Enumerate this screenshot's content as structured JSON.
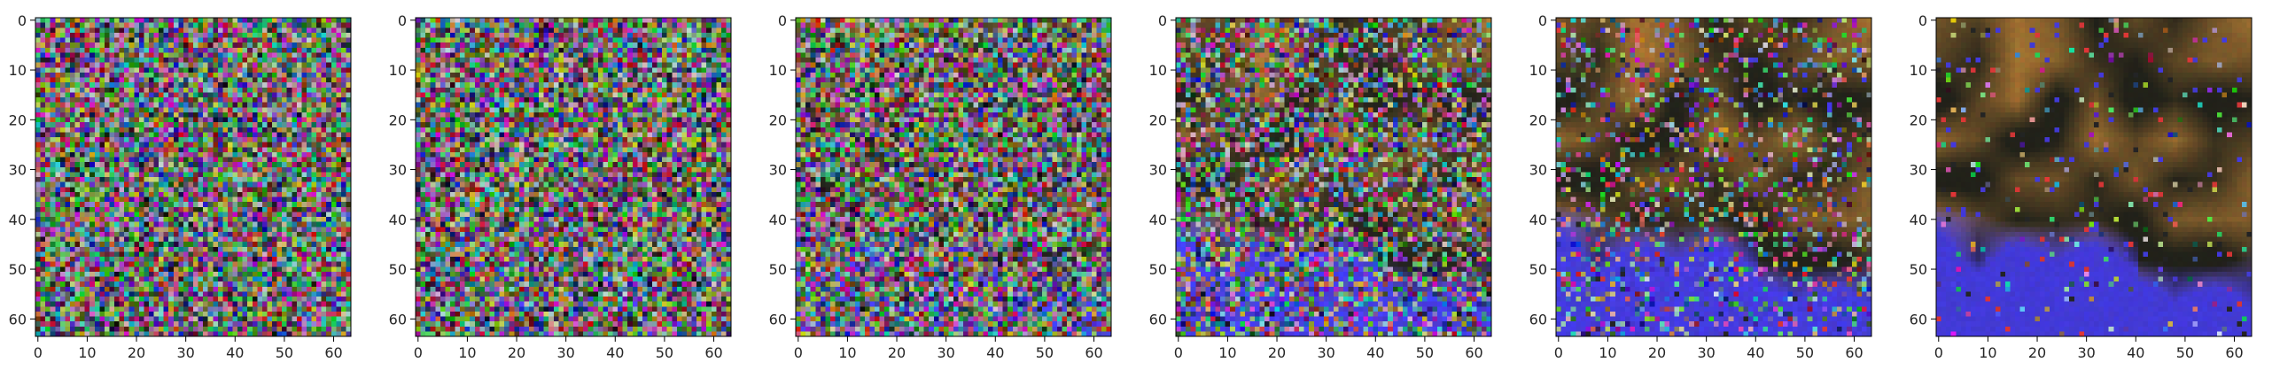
{
  "figure": {
    "panel_count": 6
  },
  "chart_data": [
    {
      "type": "heatmap",
      "title": "",
      "xlabel": "",
      "ylabel": "",
      "image_size": [
        64,
        64
      ],
      "xlim": [
        0,
        63
      ],
      "ylim": [
        63,
        0
      ],
      "xticks": [
        0,
        10,
        20,
        30,
        40,
        50,
        60
      ],
      "yticks": [
        0,
        10,
        20,
        30,
        40,
        50,
        60
      ],
      "content": "uniform random RGB noise",
      "noise_level": 1.0,
      "structure_level": 0.0,
      "colors": {
        "orange": "#c88a3a",
        "blue": "#4a40f0",
        "dark": "#25251c"
      },
      "grid": false
    },
    {
      "type": "heatmap",
      "title": "",
      "xlabel": "",
      "ylabel": "",
      "image_size": [
        64,
        64
      ],
      "xlim": [
        0,
        63
      ],
      "ylim": [
        63,
        0
      ],
      "xticks": [
        0,
        10,
        20,
        30,
        40,
        50,
        60
      ],
      "yticks": [
        0,
        10,
        20,
        30,
        40,
        50,
        60
      ],
      "content": "random RGB noise",
      "noise_level": 0.97,
      "structure_level": 0.03,
      "colors": {
        "orange": "#c88a3a",
        "blue": "#4a40f0",
        "dark": "#25251c"
      },
      "grid": false
    },
    {
      "type": "heatmap",
      "title": "",
      "xlabel": "",
      "ylabel": "",
      "image_size": [
        64,
        64
      ],
      "xlim": [
        0,
        63
      ],
      "ylim": [
        63,
        0
      ],
      "xticks": [
        0,
        10,
        20,
        30,
        40,
        50,
        60
      ],
      "yticks": [
        0,
        10,
        20,
        30,
        40,
        50,
        60
      ],
      "content": "random RGB noise, slightly darker",
      "noise_level": 0.9,
      "structure_level": 0.12,
      "colors": {
        "orange": "#c88a3a",
        "blue": "#4a40f0",
        "dark": "#25251c"
      },
      "grid": false
    },
    {
      "type": "heatmap",
      "title": "",
      "xlabel": "",
      "ylabel": "",
      "image_size": [
        64,
        64
      ],
      "xlim": [
        0,
        63
      ],
      "ylim": [
        63,
        0
      ],
      "xticks": [
        0,
        10,
        20,
        30,
        40,
        50,
        60
      ],
      "yticks": [
        0,
        10,
        20,
        30,
        40,
        50,
        60
      ],
      "content": "noise with faint orange and blue structure",
      "noise_level": 0.65,
      "structure_level": 0.35,
      "colors": {
        "orange": "#c88a3a",
        "blue": "#4a40f0",
        "dark": "#25251c"
      },
      "grid": false
    },
    {
      "type": "heatmap",
      "title": "",
      "xlabel": "",
      "ylabel": "",
      "image_size": [
        64,
        64
      ],
      "xlim": [
        0,
        63
      ],
      "ylim": [
        63,
        0
      ],
      "xticks": [
        0,
        10,
        20,
        30,
        40,
        50,
        60
      ],
      "yticks": [
        0,
        10,
        20,
        30,
        40,
        50,
        60
      ],
      "content": "dark orange/blue scene with sparse noise",
      "noise_level": 0.28,
      "structure_level": 0.72,
      "colors": {
        "orange": "#c88a3a",
        "blue": "#4a40f0",
        "dark": "#25251c"
      },
      "grid": false
    },
    {
      "type": "heatmap",
      "title": "",
      "xlabel": "",
      "ylabel": "",
      "image_size": [
        64,
        64
      ],
      "xlim": [
        0,
        63
      ],
      "ylim": [
        63,
        0
      ],
      "xticks": [
        0,
        10,
        20,
        30,
        40,
        50,
        60
      ],
      "yticks": [
        0,
        10,
        20,
        30,
        40,
        50,
        60
      ],
      "content": "mostly denoised: orange upper region, blue lower region",
      "noise_level": 0.04,
      "structure_level": 1.0,
      "colors": {
        "orange": "#c88a3a",
        "blue": "#4a40f0",
        "dark": "#25251c"
      },
      "grid": false
    }
  ]
}
